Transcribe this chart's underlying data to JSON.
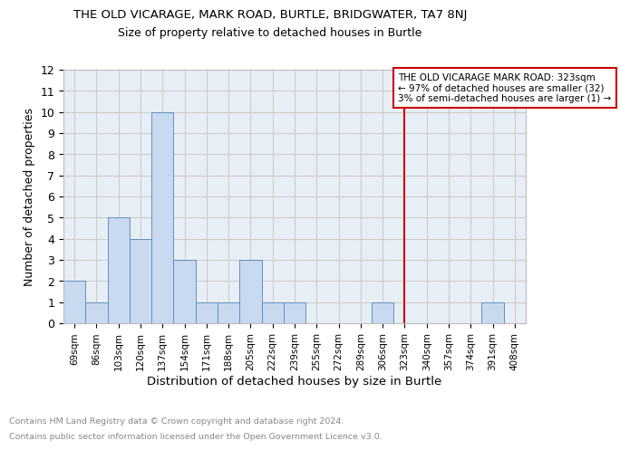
{
  "title": "THE OLD VICARAGE, MARK ROAD, BURTLE, BRIDGWATER, TA7 8NJ",
  "subtitle": "Size of property relative to detached houses in Burtle",
  "xlabel": "Distribution of detached houses by size in Burtle",
  "ylabel": "Number of detached properties",
  "footnote1": "Contains HM Land Registry data © Crown copyright and database right 2024.",
  "footnote2": "Contains public sector information licensed under the Open Government Licence v3.0.",
  "bin_labels": [
    "69sqm",
    "86sqm",
    "103sqm",
    "120sqm",
    "137sqm",
    "154sqm",
    "171sqm",
    "188sqm",
    "205sqm",
    "222sqm",
    "239sqm",
    "255sqm",
    "272sqm",
    "289sqm",
    "306sqm",
    "323sqm",
    "340sqm",
    "357sqm",
    "374sqm",
    "391sqm",
    "408sqm"
  ],
  "bar_values": [
    2,
    1,
    5,
    4,
    10,
    3,
    1,
    1,
    3,
    1,
    1,
    0,
    0,
    0,
    1,
    0,
    0,
    0,
    0,
    1,
    0
  ],
  "bar_color": "#c8d9f0",
  "bar_edge_color": "#6090c0",
  "vline_x": 15,
  "vline_color": "#cc0000",
  "annotation_title": "THE OLD VICARAGE MARK ROAD: 323sqm",
  "annotation_line1": "← 97% of detached houses are smaller (32)",
  "annotation_line2": "3% of semi-detached houses are larger (1) →",
  "annotation_box_color": "#ffffff",
  "annotation_border_color": "#cc0000",
  "ylim": [
    0,
    12
  ],
  "yticks": [
    0,
    1,
    2,
    3,
    4,
    5,
    6,
    7,
    8,
    9,
    10,
    11,
    12
  ],
  "grid_color": "#cccccc",
  "bg_color": "#e8eef5"
}
